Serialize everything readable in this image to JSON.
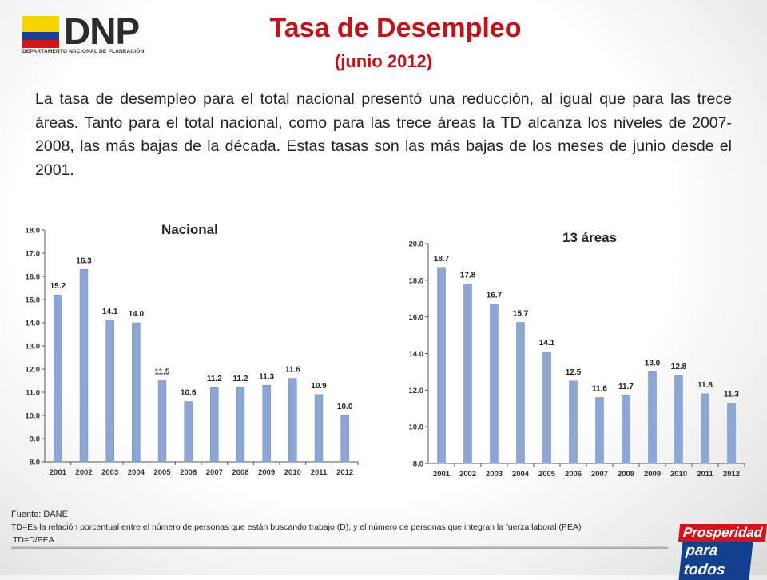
{
  "logo": {
    "name": "DNP",
    "subtitle": "DEPARTAMENTO NACIONAL DE PLANEACIÓN",
    "flag_colors": [
      "#f5d400",
      "#1f3f94",
      "#d6141c"
    ]
  },
  "title": "Tasa de Desempleo",
  "subtitle": "(junio 2012)",
  "paragraph": "La tasa de desempleo para el total nacional presentó una reducción, al igual que para las trece áreas. Tanto para el total nacional, como para las trece áreas la TD alcanza los niveles de 2007-2008, las más bajas de la década.  Estas tasas son las más bajas de los meses de junio desde el 2001.",
  "footer": {
    "source": "Fuente: DANE",
    "note1": "TD=Es la relación porcentual entre el número de personas que están buscando trabajo (D), y el número de personas que integran la fuerza laboral (PEA)",
    "note2": "TD=D/PEA"
  },
  "badge": {
    "line1": "Prosperidad",
    "line2": "para todos"
  },
  "colors": {
    "bar": "#8da6d6",
    "bar_stroke": "#6f8cc4",
    "title": "#c0141a"
  },
  "chart_data": [
    {
      "type": "bar",
      "title": "Nacional",
      "categories": [
        "2001",
        "2002",
        "2003",
        "2004",
        "2005",
        "2006",
        "2007",
        "2008",
        "2009",
        "2010",
        "2011",
        "2012"
      ],
      "values": [
        15.2,
        16.3,
        14.1,
        14.0,
        11.5,
        10.6,
        11.2,
        11.2,
        11.3,
        11.6,
        10.9,
        10.0
      ],
      "value_labels": [
        "15.2",
        "16.3",
        "14.1",
        "14.0",
        "11.5",
        "10.6",
        "11.2",
        "11.2",
        "11.3",
        "11.6",
        "10.9",
        "10.0"
      ],
      "ylim": [
        8,
        18
      ],
      "yticks": [
        "8.0",
        "9.0",
        "10.0",
        "11.0",
        "12.0",
        "13.0",
        "14.0",
        "15.0",
        "16.0",
        "17.0",
        "18.0"
      ],
      "xlabel": "",
      "ylabel": "",
      "grid": false
    },
    {
      "type": "bar",
      "title": "13 áreas",
      "categories": [
        "2001",
        "2002",
        "2003",
        "2004",
        "2005",
        "2006",
        "2007",
        "2008",
        "2009",
        "2010",
        "2011",
        "2012"
      ],
      "values": [
        18.7,
        17.8,
        16.7,
        15.7,
        14.1,
        12.5,
        11.6,
        11.7,
        13.0,
        12.8,
        11.8,
        11.3
      ],
      "value_labels": [
        "18.7",
        "17.8",
        "16.7",
        "15.7",
        "14.1",
        "12.5",
        "11.6",
        "11.7",
        "13.0",
        "12.8",
        "11.8",
        "11.3"
      ],
      "ylim": [
        8,
        20
      ],
      "yticks": [
        "8.0",
        "10.0",
        "12.0",
        "14.0",
        "16.0",
        "18.0",
        "20.0"
      ],
      "xlabel": "",
      "ylabel": "",
      "grid": false
    }
  ]
}
